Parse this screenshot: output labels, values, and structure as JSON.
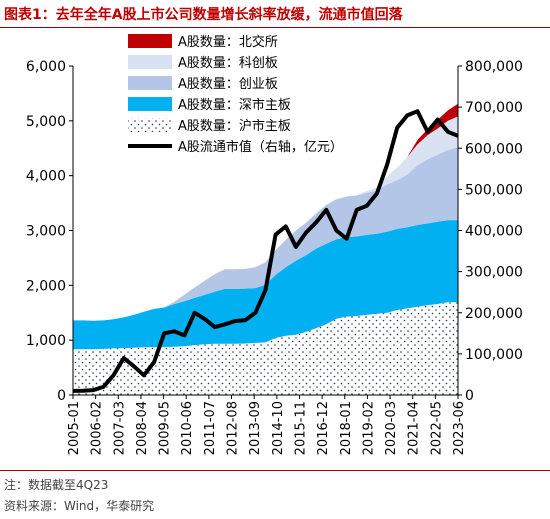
{
  "header": {
    "figure_label": "图表1：",
    "title": "去年全年A股上市公司数量增长斜率放缓，流通市值回落"
  },
  "footer": {
    "note": "注：数据截至4Q23",
    "source": "资料来源：Wind，华泰研究"
  },
  "colors": {
    "bjse": "#c00000",
    "star": "#d9e2f3",
    "chinext": "#b4c6e7",
    "szse": "#00b0f0",
    "sse_dots": "#1f3864",
    "line": "#000000",
    "title": "#c00000"
  },
  "chart_data": {
    "type": "area",
    "x": [
      "2005-01",
      "2005-07",
      "2006-01",
      "2006-07",
      "2007-01",
      "2007-07",
      "2008-01",
      "2008-07",
      "2009-01",
      "2009-07",
      "2010-01",
      "2010-07",
      "2011-01",
      "2011-07",
      "2012-01",
      "2012-07",
      "2013-01",
      "2013-07",
      "2014-01",
      "2014-07",
      "2015-01",
      "2015-07",
      "2016-01",
      "2016-07",
      "2017-01",
      "2017-07",
      "2018-01",
      "2018-07",
      "2019-01",
      "2019-07",
      "2020-01",
      "2020-07",
      "2021-01",
      "2021-07",
      "2022-01",
      "2022-07",
      "2023-01",
      "2023-07",
      "2023-12"
    ],
    "x_tick_labels": [
      "2005-01",
      "2006-02",
      "2007-03",
      "2008-04",
      "2009-05",
      "2010-06",
      "2011-07",
      "2012-08",
      "2013-09",
      "2014-10",
      "2015-11",
      "2016-12",
      "2018-01",
      "2019-02",
      "2020-03",
      "2021-04",
      "2022-05",
      "2023-06"
    ],
    "series": [
      {
        "name": "A股数量：沪市主板",
        "kind": "area",
        "axis": "left",
        "values": [
          835,
          835,
          835,
          840,
          850,
          855,
          860,
          870,
          870,
          875,
          880,
          890,
          910,
          925,
          935,
          935,
          935,
          940,
          950,
          960,
          1040,
          1080,
          1100,
          1150,
          1220,
          1290,
          1390,
          1430,
          1440,
          1460,
          1480,
          1500,
          1550,
          1580,
          1610,
          1640,
          1660,
          1690,
          1690
        ]
      },
      {
        "name": "A股数量：深市主板",
        "kind": "area",
        "axis": "left",
        "values": [
          525,
          525,
          520,
          520,
          530,
          560,
          600,
          650,
          700,
          720,
          780,
          820,
          860,
          900,
          950,
          1000,
          1000,
          1000,
          1000,
          1050,
          1150,
          1250,
          1350,
          1400,
          1450,
          1470,
          1450,
          1450,
          1450,
          1460,
          1460,
          1480,
          1480,
          1480,
          1490,
          1490,
          1500,
          1500,
          1500
        ]
      },
      {
        "name": "A股数量：创业板",
        "kind": "area",
        "axis": "left",
        "values": [
          0,
          0,
          0,
          0,
          0,
          0,
          0,
          0,
          0,
          0,
          40,
          120,
          190,
          260,
          320,
          360,
          360,
          360,
          380,
          410,
          450,
          500,
          550,
          590,
          640,
          710,
          730,
          740,
          750,
          770,
          790,
          860,
          890,
          960,
          1090,
          1170,
          1220,
          1280,
          1330
        ]
      },
      {
        "name": "A股数量：科创板",
        "kind": "area",
        "axis": "left",
        "values": [
          0,
          0,
          0,
          0,
          0,
          0,
          0,
          0,
          0,
          0,
          0,
          0,
          0,
          0,
          0,
          0,
          0,
          0,
          0,
          0,
          0,
          0,
          0,
          0,
          0,
          0,
          0,
          0,
          0,
          30,
          60,
          150,
          230,
          320,
          380,
          440,
          480,
          530,
          560
        ]
      },
      {
        "name": "A股数量：北交所",
        "kind": "area",
        "axis": "left",
        "values": [
          0,
          0,
          0,
          0,
          0,
          0,
          0,
          0,
          0,
          0,
          0,
          0,
          0,
          0,
          0,
          0,
          0,
          0,
          0,
          0,
          0,
          0,
          0,
          0,
          0,
          0,
          0,
          0,
          0,
          0,
          0,
          0,
          0,
          0,
          80,
          110,
          160,
          190,
          230
        ]
      },
      {
        "name": "A股流通市值（右轴，亿元）",
        "kind": "line",
        "axis": "right",
        "values": [
          10000,
          10500,
          12000,
          20000,
          48000,
          90000,
          70000,
          48000,
          80000,
          150000,
          155000,
          145000,
          200000,
          185000,
          165000,
          172000,
          180000,
          182000,
          200000,
          255000,
          390000,
          410000,
          360000,
          395000,
          420000,
          450000,
          400000,
          380000,
          450000,
          460000,
          490000,
          560000,
          650000,
          680000,
          690000,
          640000,
          670000,
          640000,
          630000
        ]
      }
    ],
    "y_left": {
      "min": 0,
      "max": 6000,
      "ticks": [
        "0",
        "1,000",
        "2,000",
        "3,000",
        "4,000",
        "5,000",
        "6,000"
      ]
    },
    "y_right": {
      "min": 0,
      "max": 800000,
      "ticks": [
        "0",
        "100,000",
        "200,000",
        "300,000",
        "400,000",
        "500,000",
        "600,000",
        "700,000",
        "800,000"
      ]
    },
    "legend": [
      {
        "label": "A股数量：北交所",
        "swatch": "bjse"
      },
      {
        "label": "A股数量：科创板",
        "swatch": "star"
      },
      {
        "label": "A股数量：创业板",
        "swatch": "chinext"
      },
      {
        "label": "A股数量：深市主板",
        "swatch": "szse"
      },
      {
        "label": "A股数量：沪市主板",
        "swatch": "sse_dots"
      },
      {
        "label": "A股流通市值（右轴，亿元）",
        "swatch": "line"
      }
    ],
    "legend_position": "top-left",
    "grid": false
  }
}
